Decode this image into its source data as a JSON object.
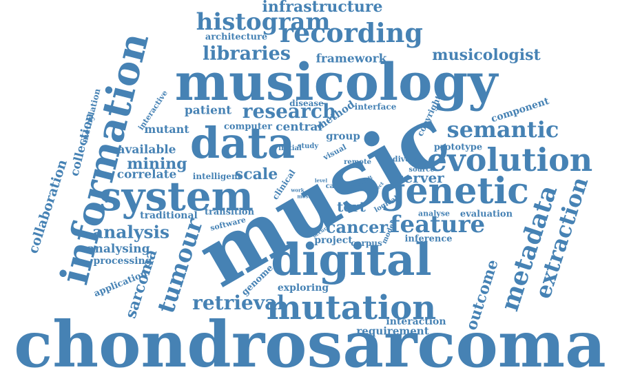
{
  "color": "#4682b4",
  "words": [
    "chondrosarcoma",
    "music",
    "musicology",
    "digital",
    "data",
    "information",
    "system",
    "genetic",
    "mutation",
    "evolution",
    "recording",
    "histogram",
    "tumour",
    "metadata",
    "libraries",
    "semantic",
    "feature",
    "infrastructure",
    "extraction",
    "retrieval",
    "research",
    "musicologist",
    "analysis",
    "cancer",
    "sarcoma",
    "outcome",
    "collaboration",
    "collection",
    "framework",
    "architecture",
    "mining",
    "scale",
    "patient",
    "server",
    "available",
    "correlate",
    "analysing",
    "processing",
    "traditional",
    "application",
    "tert",
    "central",
    "method",
    "group",
    "component",
    "mutant",
    "computer",
    "intelligent",
    "transition",
    "software",
    "genome",
    "exploring",
    "project",
    "corpus",
    "inference",
    "evaluation",
    "analyse",
    "prototype",
    "copyright",
    "interface",
    "disease",
    "interactive",
    "methylation",
    "study",
    "initial",
    "visual",
    "remote",
    "diverse",
    "source",
    "clinical",
    "level",
    "work",
    "most",
    "case",
    "many",
    "result",
    "effect",
    "logical",
    "model",
    "occur",
    "interaction",
    "requirement"
  ]
}
